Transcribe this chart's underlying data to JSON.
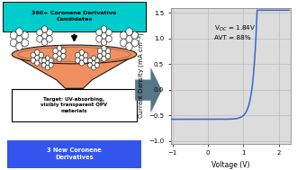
{
  "title_box_text": "360+ Coronene Derivative\nCandidates",
  "title_box_color": "#00CCCC",
  "bottom_box_text": "3 New Coronene\nDerivatives",
  "bottom_box_color": "#3355EE",
  "target_box_text": "Target: UV-absorbing,\nvisibly transparent OPV\nmaterials",
  "funnel_color": "#F09060",
  "funnel_edge_color": "#1A1A1A",
  "arrow_color": "#557788",
  "annotation_line1": "V$_{OC}$ = 1.84V",
  "annotation_line2": "AVT = 88%",
  "xlabel": "Voltage (V)",
  "ylabel": "Current Density (mA cm$^{-2}$)",
  "xlim": [
    -1.05,
    2.35
  ],
  "ylim": [
    -1.05,
    1.6
  ],
  "xticks": [
    -1,
    0,
    1,
    2
  ],
  "yticks": [
    -1.0,
    -0.5,
    0.0,
    0.5,
    1.0,
    1.5
  ],
  "grid_color": "#BBBBBB",
  "curve_color": "#3366CC",
  "jsc": -0.575,
  "vt": 0.115,
  "j0": 1.2e-05,
  "background_color": "#DCDCDC"
}
